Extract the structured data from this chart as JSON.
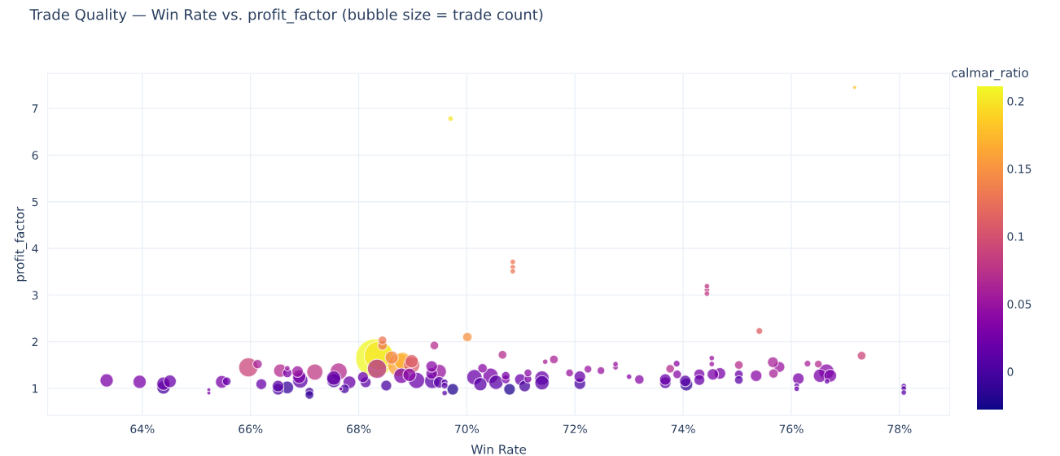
{
  "chart_data": {
    "type": "bubble",
    "title": "Trade Quality — Win Rate vs. profit_factor (bubble size = trade count)",
    "xlabel": "Win Rate",
    "ylabel": "profit_factor",
    "clabel": "calmar_ratio",
    "x": [
      63.34,
      63.95,
      64.39,
      64.39,
      64.51,
      65.23,
      65.23,
      65.47,
      65.56,
      65.96,
      66.13,
      66.2,
      66.51,
      66.51,
      66.68,
      66.68,
      66.68,
      66.55,
      66.87,
      66.9,
      66.92,
      67.09,
      67.09,
      67.19,
      67.54,
      67.54,
      67.63,
      67.67,
      67.74,
      67.83,
      68.08,
      68.13,
      68.3,
      68.37,
      68.34,
      68.44,
      68.44,
      68.61,
      68.75,
      68.81,
      68.98,
      68.98,
      68.79,
      68.94,
      69.07,
      68.51,
      69.4,
      69.35,
      69.35,
      69.49,
      69.36,
      69.49,
      69.59,
      69.59,
      69.59,
      69.74,
      69.7,
      70.01,
      70.14,
      70.25,
      70.29,
      70.44,
      70.54,
      70.66,
      70.72,
      70.72,
      70.79,
      70.85,
      70.85,
      70.85,
      70.99,
      71.07,
      71.13,
      71.13,
      71.39,
      71.39,
      71.45,
      71.61,
      71.9,
      72.09,
      72.09,
      72.24,
      72.48,
      72.75,
      72.75,
      73.0,
      73.19,
      73.67,
      73.67,
      73.76,
      73.88,
      73.89,
      74.04,
      74.06,
      74.3,
      74.3,
      74.44,
      74.44,
      74.44,
      74.53,
      74.53,
      74.55,
      74.68,
      75.03,
      75.03,
      75.03,
      75.35,
      75.41,
      75.66,
      75.67,
      75.78,
      76.13,
      76.1,
      76.1,
      76.3,
      76.5,
      76.53,
      76.65,
      76.72,
      76.66,
      77.17,
      77.3,
      78.08,
      78.08,
      78.08
    ],
    "values": [
      1.17,
      1.14,
      1.1,
      1.02,
      1.15,
      0.97,
      0.9,
      1.14,
      1.15,
      1.45,
      1.52,
      1.09,
      1.05,
      0.98,
      1.02,
      1.33,
      1.43,
      1.38,
      1.36,
      1.25,
      1.17,
      0.93,
      0.86,
      1.35,
      1.22,
      1.17,
      1.36,
      0.99,
      0.99,
      1.13,
      1.24,
      1.13,
      1.65,
      1.7,
      1.42,
      2.03,
      1.92,
      1.66,
      1.5,
      1.59,
      1.5,
      1.58,
      1.27,
      1.29,
      1.17,
      1.06,
      1.92,
      1.47,
      1.32,
      1.36,
      1.16,
      1.13,
      1.13,
      1.06,
      0.9,
      0.98,
      6.78,
      2.1,
      1.24,
      1.09,
      1.43,
      1.27,
      1.13,
      1.72,
      1.27,
      1.19,
      0.98,
      3.71,
      3.6,
      3.51,
      1.19,
      1.05,
      1.33,
      1.2,
      1.22,
      1.12,
      1.57,
      1.62,
      1.33,
      1.25,
      1.1,
      1.41,
      1.38,
      1.52,
      1.45,
      1.25,
      1.19,
      1.19,
      1.12,
      1.42,
      1.53,
      1.3,
      1.16,
      1.08,
      1.3,
      1.18,
      3.19,
      3.11,
      3.03,
      1.65,
      1.52,
      1.3,
      1.32,
      1.5,
      1.3,
      1.18,
      1.27,
      2.23,
      1.56,
      1.32,
      1.46,
      1.21,
      1.06,
      0.99,
      1.53,
      1.52,
      1.27,
      1.36,
      1.27,
      1.15,
      7.45,
      1.7,
      1.05,
      1.0,
      0.91
    ],
    "sizes": [
      0.12,
      0.12,
      0.12,
      0.12,
      0.11,
      0.01,
      0.01,
      0.11,
      0.05,
      0.25,
      0.06,
      0.08,
      0.09,
      0.09,
      0.11,
      0.06,
      0.02,
      0.12,
      0.09,
      0.12,
      0.16,
      0.05,
      0.05,
      0.18,
      0.14,
      0.14,
      0.2,
      0.01,
      0.06,
      0.11,
      0.08,
      0.08,
      1,
      0.56,
      0.25,
      0.05,
      0.06,
      0.12,
      0.36,
      0.2,
      0.18,
      0.12,
      0.16,
      0.12,
      0.18,
      0.08,
      0.05,
      0.09,
      0.09,
      0.14,
      0.16,
      0.09,
      0.03,
      0.03,
      0.02,
      0.09,
      0.02,
      0.06,
      0.16,
      0.12,
      0.06,
      0.16,
      0.14,
      0.05,
      0.05,
      0.05,
      0.09,
      0.02,
      0.02,
      0.02,
      0.09,
      0.09,
      0.04,
      0.04,
      0.14,
      0.14,
      0.02,
      0.05,
      0.04,
      0.09,
      0.09,
      0.04,
      0.04,
      0.02,
      0.02,
      0.02,
      0.06,
      0.09,
      0.09,
      0.05,
      0.03,
      0.05,
      0.09,
      0.11,
      0.08,
      0.08,
      0.02,
      0.02,
      0.02,
      0.02,
      0.02,
      0.09,
      0.09,
      0.05,
      0.05,
      0.05,
      0.09,
      0.03,
      0.08,
      0.06,
      0.08,
      0.09,
      0.02,
      0.02,
      0.03,
      0.04,
      0.12,
      0.16,
      0.11,
      0.02,
      0.01,
      0.05,
      0.02,
      0.02,
      0.02
    ],
    "cvalues": [
      0.03,
      0.03,
      0.02,
      0.0,
      0.02,
      0.03,
      0.03,
      0.03,
      0.02,
      0.09,
      0.06,
      0.02,
      0.01,
      0.0,
      -0.01,
      0.03,
      0.05,
      0.07,
      0.05,
      0.03,
      0.01,
      0.0,
      -0.01,
      0.08,
      0.02,
      0.0,
      0.07,
      0.03,
      0.0,
      0.02,
      0.02,
      0.01,
      0.21,
      0.2,
      0.07,
      0.13,
      0.13,
      0.14,
      0.16,
      0.17,
      0.11,
      0.11,
      0.03,
      0.04,
      0.02,
      0.0,
      0.07,
      0.04,
      0.03,
      0.05,
      0.01,
      0.01,
      0.01,
      0.01,
      0.01,
      -0.02,
      0.2,
      0.15,
      0.02,
      0.01,
      0.04,
      0.03,
      0.01,
      0.07,
      0.03,
      0.03,
      -0.02,
      0.13,
      0.13,
      0.13,
      0.02,
      0.0,
      0.04,
      0.03,
      0.02,
      0.01,
      0.06,
      0.06,
      0.05,
      0.02,
      0.0,
      0.05,
      0.05,
      0.05,
      0.05,
      0.04,
      0.04,
      0.02,
      0.01,
      0.07,
      0.04,
      0.04,
      0.01,
      -0.01,
      0.03,
      0.02,
      0.08,
      0.08,
      0.08,
      0.05,
      0.05,
      0.03,
      0.03,
      0.07,
      0.02,
      0.01,
      0.04,
      0.11,
      0.06,
      0.06,
      0.05,
      0.03,
      0.02,
      0.02,
      0.06,
      0.07,
      0.03,
      0.04,
      0.03,
      0.02,
      0.18,
      0.09,
      0.01,
      0.01,
      0.01
    ],
    "clim": [
      -0.028,
      0.211
    ],
    "cticks": [
      0,
      0.05,
      0.1,
      0.15,
      0.2
    ],
    "xlim": [
      62.25,
      78.93
    ],
    "xticks": [
      {
        "value": 64,
        "label": "64%"
      },
      {
        "value": 66,
        "label": "66%"
      },
      {
        "value": 68,
        "label": "68%"
      },
      {
        "value": 70,
        "label": "70%"
      },
      {
        "value": 72,
        "label": "72%"
      },
      {
        "value": 74,
        "label": "74%"
      },
      {
        "value": 76,
        "label": "76%"
      },
      {
        "value": 78,
        "label": "78%"
      }
    ],
    "ylim": [
      0.42,
      7.75
    ],
    "yticks": [
      1,
      2,
      3,
      4,
      5,
      6,
      7
    ],
    "grid": true,
    "legend": false
  }
}
